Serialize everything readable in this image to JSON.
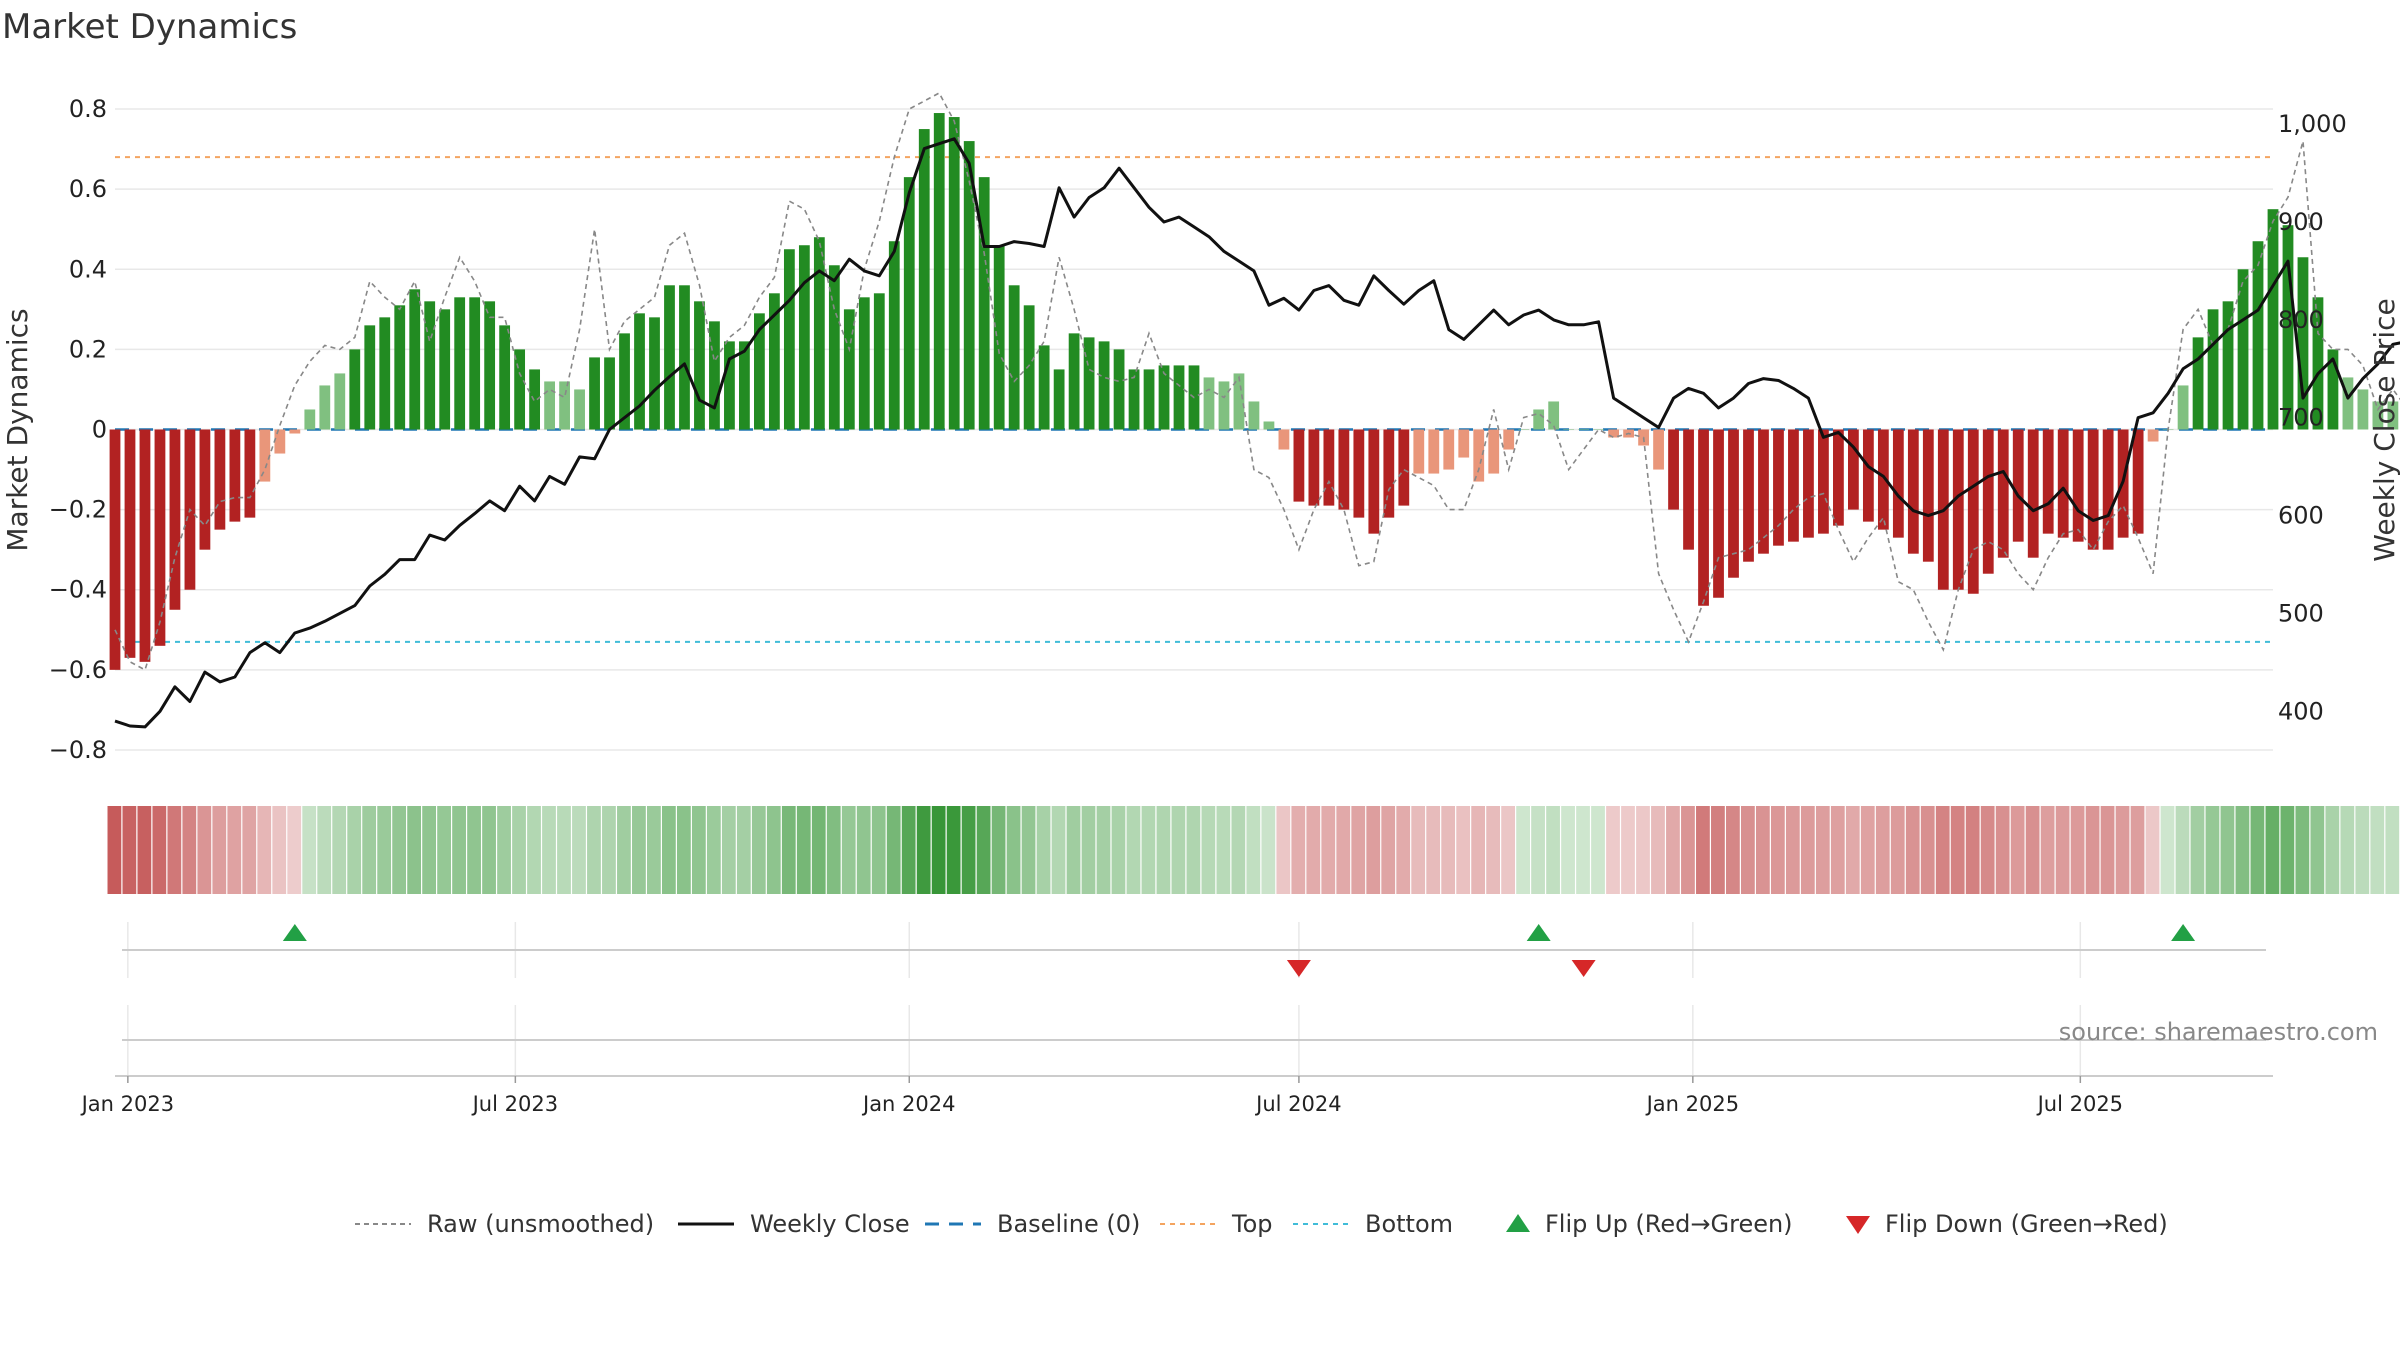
{
  "chart_data": {
    "type": "bar",
    "title": "Market Dynamics",
    "ylabel_left": "Market Dynamics",
    "ylabel_right": "Weekly Close Price",
    "ylim_left": [
      -0.85,
      0.86
    ],
    "ylim_right": [
      340,
      1040
    ],
    "left_ticks": [
      -0.8,
      -0.6,
      -0.4,
      -0.2,
      0,
      0.2,
      0.4,
      0.6,
      0.8
    ],
    "left_tick_labels": [
      "−0.8",
      "−0.6",
      "−0.4",
      "−0.2",
      "0",
      "0.2",
      "0.4",
      "0.6",
      "0.8"
    ],
    "right_ticks": [
      400,
      500,
      600,
      700,
      800,
      900,
      1000
    ],
    "right_tick_labels": [
      "400",
      "500",
      "600",
      "700",
      "800",
      "900",
      "1,000"
    ],
    "x_start": "2022-12-26",
    "x_end": "2025-09-29",
    "x_ticks": [
      {
        "date": "2023-01-01",
        "label": "Jan 2023"
      },
      {
        "date": "2023-07-01",
        "label": "Jul 2023"
      },
      {
        "date": "2024-01-01",
        "label": "Jan 2024"
      },
      {
        "date": "2024-07-01",
        "label": "Jul 2024"
      },
      {
        "date": "2025-01-01",
        "label": "Jan 2025"
      },
      {
        "date": "2025-07-01",
        "label": "Jul 2025"
      }
    ],
    "first_week": "2022-12-26",
    "weekly_interval_days": 7,
    "smoothed": [
      -0.6,
      -0.57,
      -0.58,
      -0.54,
      -0.45,
      -0.4,
      -0.3,
      -0.25,
      -0.23,
      -0.22,
      -0.13,
      -0.06,
      -0.01,
      0.05,
      0.11,
      0.14,
      0.2,
      0.26,
      0.28,
      0.31,
      0.35,
      0.32,
      0.3,
      0.33,
      0.33,
      0.32,
      0.26,
      0.2,
      0.15,
      0.12,
      0.12,
      0.1,
      0.18,
      0.18,
      0.24,
      0.29,
      0.28,
      0.36,
      0.36,
      0.32,
      0.27,
      0.22,
      0.22,
      0.29,
      0.34,
      0.45,
      0.46,
      0.48,
      0.41,
      0.3,
      0.33,
      0.34,
      0.47,
      0.63,
      0.75,
      0.79,
      0.78,
      0.72,
      0.63,
      0.46,
      0.36,
      0.31,
      0.21,
      0.15,
      0.24,
      0.23,
      0.22,
      0.2,
      0.15,
      0.15,
      0.16,
      0.16,
      0.16,
      0.13,
      0.12,
      0.14,
      0.07,
      0.02,
      -0.05,
      -0.18,
      -0.19,
      -0.19,
      -0.2,
      -0.22,
      -0.26,
      -0.22,
      -0.19,
      -0.11,
      -0.11,
      -0.1,
      -0.07,
      -0.13,
      -0.11,
      -0.05,
      0.0,
      0.05,
      0.07,
      0.0,
      0.0,
      0.0,
      -0.02,
      -0.02,
      -0.04,
      -0.1,
      -0.2,
      -0.3,
      -0.44,
      -0.42,
      -0.37,
      -0.33,
      -0.31,
      -0.29,
      -0.28,
      -0.27,
      -0.26,
      -0.24,
      -0.2,
      -0.23,
      -0.25,
      -0.27,
      -0.31,
      -0.33,
      -0.4,
      -0.4,
      -0.41,
      -0.36,
      -0.32,
      -0.28,
      -0.32,
      -0.26,
      -0.27,
      -0.28,
      -0.3,
      -0.3,
      -0.27,
      -0.26,
      -0.03,
      0.0,
      0.11,
      0.23,
      0.3,
      0.32,
      0.4,
      0.47,
      0.55,
      0.51,
      0.43,
      0.33,
      0.2,
      0.13,
      0.1,
      0.07,
      0.07,
      0.07,
      0.04,
      0.09
    ],
    "raw": [
      -0.5,
      -0.58,
      -0.6,
      -0.48,
      -0.32,
      -0.2,
      -0.24,
      -0.18,
      -0.17,
      -0.17,
      -0.1,
      0.01,
      0.11,
      0.17,
      0.21,
      0.2,
      0.23,
      0.37,
      0.33,
      0.3,
      0.37,
      0.22,
      0.33,
      0.43,
      0.37,
      0.28,
      0.28,
      0.14,
      0.07,
      0.1,
      0.08,
      0.25,
      0.5,
      0.2,
      0.27,
      0.3,
      0.33,
      0.46,
      0.49,
      0.36,
      0.17,
      0.23,
      0.26,
      0.33,
      0.38,
      0.57,
      0.55,
      0.47,
      0.3,
      0.2,
      0.4,
      0.52,
      0.68,
      0.8,
      0.82,
      0.84,
      0.77,
      0.62,
      0.44,
      0.19,
      0.12,
      0.16,
      0.22,
      0.43,
      0.3,
      0.15,
      0.13,
      0.12,
      0.13,
      0.24,
      0.14,
      0.11,
      0.08,
      0.1,
      0.08,
      0.13,
      -0.1,
      -0.12,
      -0.2,
      -0.3,
      -0.2,
      -0.13,
      -0.2,
      -0.34,
      -0.33,
      -0.15,
      -0.1,
      -0.12,
      -0.14,
      -0.2,
      -0.2,
      -0.1,
      0.05,
      -0.1,
      0.03,
      0.04,
      0.01,
      -0.1,
      -0.05,
      0.0,
      -0.02,
      -0.01,
      -0.02,
      -0.36,
      -0.45,
      -0.53,
      -0.43,
      -0.32,
      -0.31,
      -0.3,
      -0.27,
      -0.24,
      -0.2,
      -0.17,
      -0.16,
      -0.25,
      -0.33,
      -0.27,
      -0.22,
      -0.38,
      -0.4,
      -0.48,
      -0.55,
      -0.4,
      -0.3,
      -0.28,
      -0.3,
      -0.36,
      -0.4,
      -0.32,
      -0.26,
      -0.25,
      -0.3,
      -0.23,
      -0.19,
      -0.27,
      -0.36,
      0.0,
      0.25,
      0.3,
      0.21,
      0.25,
      0.37,
      0.41,
      0.52,
      0.58,
      0.72,
      0.24,
      0.2,
      0.2,
      0.16,
      0.05,
      0.1,
      0.05,
      0.05,
      0.0,
      0.25
    ],
    "close": [
      390,
      385,
      384,
      400,
      425,
      410,
      440,
      430,
      435,
      460,
      470,
      460,
      480,
      485,
      492,
      500,
      508,
      528,
      540,
      555,
      555,
      580,
      575,
      590,
      602,
      615,
      605,
      630,
      615,
      640,
      632,
      660,
      658,
      688,
      700,
      712,
      728,
      742,
      755,
      718,
      710,
      760,
      768,
      790,
      805,
      820,
      838,
      850,
      840,
      862,
      850,
      845,
      870,
      930,
      975,
      980,
      985,
      960,
      875,
      875,
      880,
      878,
      875,
      935,
      905,
      925,
      935,
      955,
      935,
      915,
      900,
      905,
      895,
      885,
      870,
      860,
      850,
      815,
      822,
      810,
      830,
      835,
      820,
      815,
      845,
      830,
      816,
      830,
      840,
      790,
      780,
      795,
      810,
      795,
      805,
      810,
      800,
      795,
      795,
      798,
      720,
      710,
      700,
      690,
      720,
      730,
      725,
      710,
      720,
      735,
      740,
      738,
      730,
      720,
      680,
      685,
      670,
      650,
      640,
      620,
      605,
      600,
      605,
      620,
      630,
      640,
      645,
      620,
      605,
      612,
      628,
      605,
      595,
      600,
      635,
      700,
      705,
      725,
      750,
      760,
      775,
      790,
      800,
      810,
      835,
      860,
      720,
      745,
      760,
      720,
      740,
      755,
      775,
      778,
      780,
      768,
      805
    ],
    "top_line": 0.68,
    "bottom_line": -0.53,
    "baseline": 0,
    "flips": [
      {
        "week": 12,
        "direction": "up"
      },
      {
        "week": 79,
        "direction": "down"
      },
      {
        "week": 95,
        "direction": "up"
      },
      {
        "week": 98,
        "direction": "down"
      },
      {
        "week": 138,
        "direction": "up"
      }
    ],
    "strong_threshold": 0.15,
    "colors": {
      "pos_strong": "#228b22",
      "pos_weak": "#80c080",
      "neg_strong": "#b22222",
      "neg_weak": "#e9967a",
      "raw": "#888888",
      "close": "#111111",
      "baseline": "#1f77b4",
      "top": "#f4a460",
      "bottom": "#40bcd8",
      "flip_up": "#22a045",
      "flip_down": "#d62728",
      "grid": "#e8e8e8"
    },
    "legend": [
      {
        "label": "Raw (unsmoothed)",
        "kind": "raw"
      },
      {
        "label": "Weekly Close",
        "kind": "close"
      },
      {
        "label": "Baseline (0)",
        "kind": "baseline"
      },
      {
        "label": "Top",
        "kind": "top"
      },
      {
        "label": "Bottom",
        "kind": "bottom"
      },
      {
        "label": "Flip Up (Red→Green)",
        "kind": "flip_up"
      },
      {
        "label": "Flip Down (Green→Red)",
        "kind": "flip_down"
      }
    ],
    "source": "source: sharemaestro.com"
  }
}
